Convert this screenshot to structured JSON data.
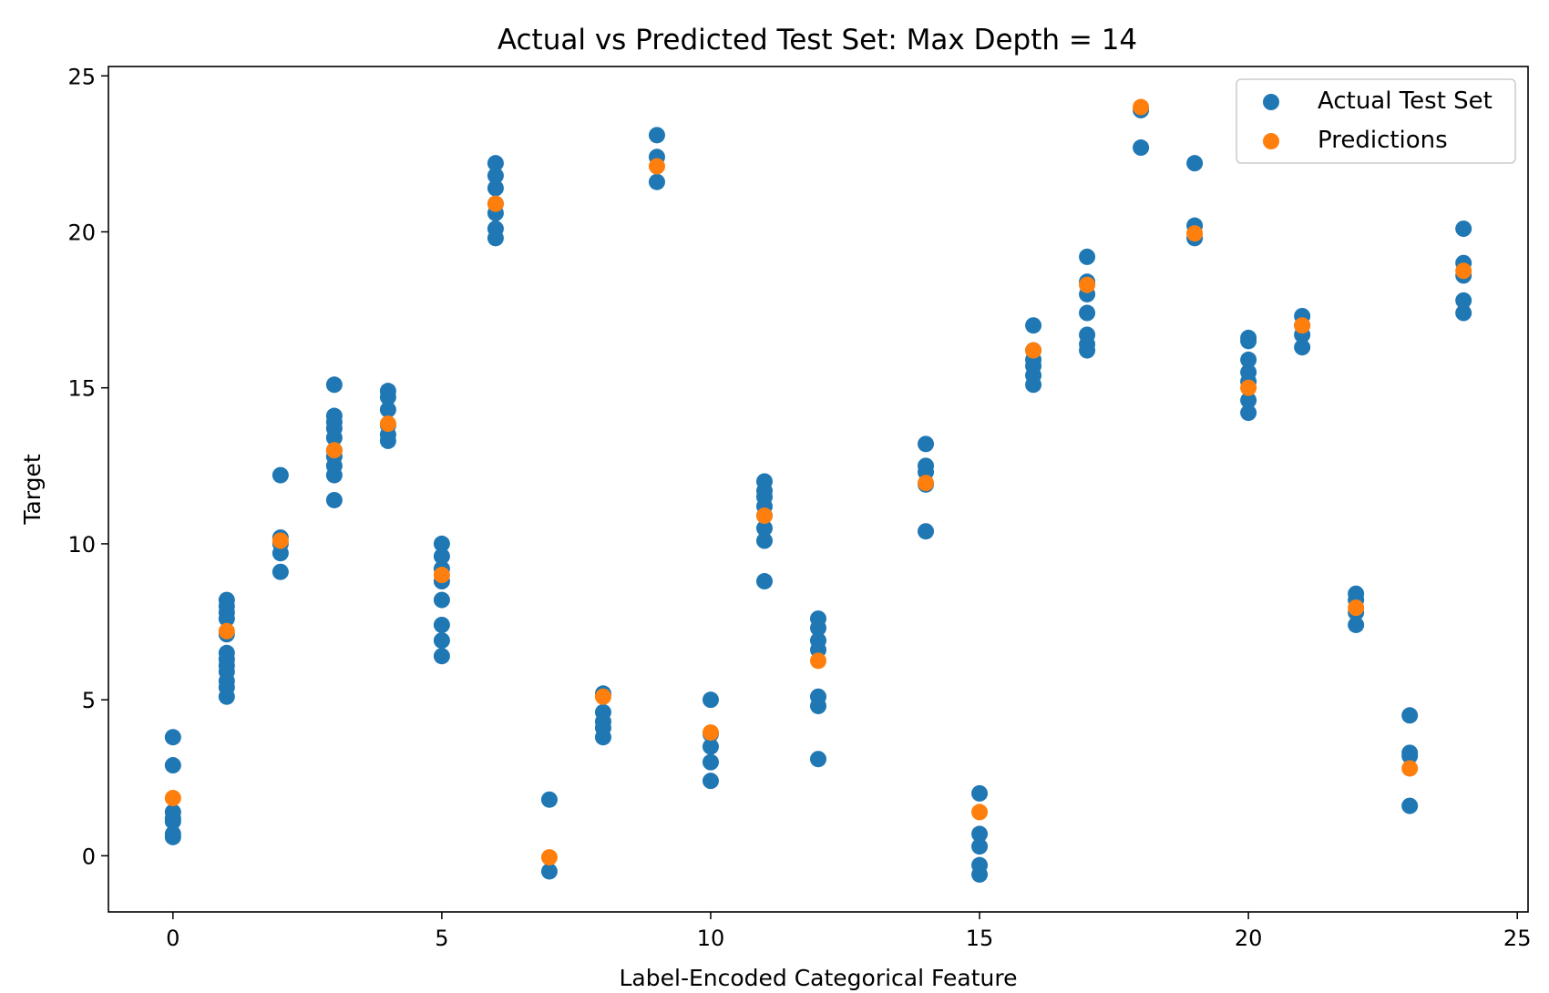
{
  "chart_data": {
    "type": "scatter",
    "title": "Actual vs Predicted Test Set: Max Depth = 14",
    "xlabel": "Label-Encoded Categorical Feature",
    "ylabel": "Target",
    "xlim": [
      -1.2,
      25.2
    ],
    "ylim": [
      -1.8,
      25.3
    ],
    "xticks": [
      0,
      5,
      10,
      15,
      20,
      25
    ],
    "yticks": [
      0,
      5,
      10,
      15,
      20,
      25
    ],
    "grid": false,
    "legend_position": "top-right",
    "series": [
      {
        "name": "Actual Test Set",
        "color": "#1f77b4",
        "points": [
          [
            0,
            3.8
          ],
          [
            0,
            2.9
          ],
          [
            0,
            1.4
          ],
          [
            0,
            1.2
          ],
          [
            0,
            1.1
          ],
          [
            0,
            0.7
          ],
          [
            0,
            0.6
          ],
          [
            1,
            8.2
          ],
          [
            1,
            8.0
          ],
          [
            1,
            7.8
          ],
          [
            1,
            7.6
          ],
          [
            1,
            7.1
          ],
          [
            1,
            6.5
          ],
          [
            1,
            6.3
          ],
          [
            1,
            6.1
          ],
          [
            1,
            5.9
          ],
          [
            1,
            5.6
          ],
          [
            1,
            5.4
          ],
          [
            1,
            5.1
          ],
          [
            2,
            12.2
          ],
          [
            2,
            10.2
          ],
          [
            2,
            10.0
          ],
          [
            2,
            9.7
          ],
          [
            2,
            9.1
          ],
          [
            3,
            15.1
          ],
          [
            3,
            14.1
          ],
          [
            3,
            13.9
          ],
          [
            3,
            13.7
          ],
          [
            3,
            13.4
          ],
          [
            3,
            13.0
          ],
          [
            3,
            12.8
          ],
          [
            3,
            12.5
          ],
          [
            3,
            12.2
          ],
          [
            3,
            11.4
          ],
          [
            4,
            14.9
          ],
          [
            4,
            14.7
          ],
          [
            4,
            14.3
          ],
          [
            4,
            13.8
          ],
          [
            4,
            13.5
          ],
          [
            4,
            13.3
          ],
          [
            5,
            10.0
          ],
          [
            5,
            9.6
          ],
          [
            5,
            9.2
          ],
          [
            5,
            8.8
          ],
          [
            5,
            8.2
          ],
          [
            5,
            7.4
          ],
          [
            5,
            6.9
          ],
          [
            5,
            6.4
          ],
          [
            6,
            22.2
          ],
          [
            6,
            21.8
          ],
          [
            6,
            21.4
          ],
          [
            6,
            20.9
          ],
          [
            6,
            20.6
          ],
          [
            6,
            20.1
          ],
          [
            6,
            19.8
          ],
          [
            7,
            1.8
          ],
          [
            7,
            -0.5
          ],
          [
            8,
            5.2
          ],
          [
            8,
            4.6
          ],
          [
            8,
            4.3
          ],
          [
            8,
            4.1
          ],
          [
            8,
            3.8
          ],
          [
            9,
            23.1
          ],
          [
            9,
            22.4
          ],
          [
            9,
            21.6
          ],
          [
            10,
            5.0
          ],
          [
            10,
            3.9
          ],
          [
            10,
            3.5
          ],
          [
            10,
            3.0
          ],
          [
            10,
            2.4
          ],
          [
            11,
            12.0
          ],
          [
            11,
            11.7
          ],
          [
            11,
            11.5
          ],
          [
            11,
            11.2
          ],
          [
            11,
            10.9
          ],
          [
            11,
            10.5
          ],
          [
            11,
            10.1
          ],
          [
            11,
            8.8
          ],
          [
            12,
            7.6
          ],
          [
            12,
            7.3
          ],
          [
            12,
            6.9
          ],
          [
            12,
            6.6
          ],
          [
            12,
            5.1
          ],
          [
            12,
            4.8
          ],
          [
            12,
            3.1
          ],
          [
            14,
            13.2
          ],
          [
            14,
            12.5
          ],
          [
            14,
            12.3
          ],
          [
            14,
            11.9
          ],
          [
            14,
            10.4
          ],
          [
            15,
            2.0
          ],
          [
            15,
            0.7
          ],
          [
            15,
            0.3
          ],
          [
            15,
            -0.3
          ],
          [
            15,
            -0.6
          ],
          [
            16,
            17.0
          ],
          [
            16,
            16.2
          ],
          [
            16,
            15.9
          ],
          [
            16,
            15.7
          ],
          [
            16,
            15.4
          ],
          [
            16,
            15.1
          ],
          [
            17,
            19.2
          ],
          [
            17,
            18.4
          ],
          [
            17,
            18.0
          ],
          [
            17,
            17.4
          ],
          [
            17,
            16.7
          ],
          [
            17,
            16.4
          ],
          [
            17,
            16.2
          ],
          [
            18,
            23.9
          ],
          [
            18,
            22.7
          ],
          [
            19,
            22.2
          ],
          [
            19,
            20.2
          ],
          [
            19,
            19.8
          ],
          [
            20,
            16.6
          ],
          [
            20,
            16.5
          ],
          [
            20,
            15.9
          ],
          [
            20,
            15.5
          ],
          [
            20,
            15.2
          ],
          [
            20,
            14.6
          ],
          [
            20,
            14.2
          ],
          [
            21,
            17.3
          ],
          [
            21,
            17.0
          ],
          [
            21,
            16.7
          ],
          [
            21,
            16.3
          ],
          [
            22,
            8.4
          ],
          [
            22,
            8.2
          ],
          [
            22,
            7.8
          ],
          [
            22,
            7.4
          ],
          [
            23,
            4.5
          ],
          [
            23,
            3.3
          ],
          [
            23,
            3.2
          ],
          [
            23,
            1.6
          ],
          [
            24,
            20.1
          ],
          [
            24,
            19.0
          ],
          [
            24,
            18.6
          ],
          [
            24,
            17.8
          ],
          [
            24,
            17.4
          ]
        ]
      },
      {
        "name": "Predictions",
        "color": "#ff7f0e",
        "points": [
          [
            0,
            1.85
          ],
          [
            1,
            7.2
          ],
          [
            2,
            10.1
          ],
          [
            3,
            13.0
          ],
          [
            4,
            13.85
          ],
          [
            5,
            9.0
          ],
          [
            6,
            20.9
          ],
          [
            7,
            -0.05
          ],
          [
            8,
            5.1
          ],
          [
            9,
            22.1
          ],
          [
            10,
            3.95
          ],
          [
            11,
            10.9
          ],
          [
            12,
            6.25
          ],
          [
            14,
            11.95
          ],
          [
            15,
            1.4
          ],
          [
            16,
            16.2
          ],
          [
            17,
            18.3
          ],
          [
            18,
            24.0
          ],
          [
            19,
            19.95
          ],
          [
            20,
            15.0
          ],
          [
            21,
            17.0
          ],
          [
            22,
            7.95
          ],
          [
            23,
            2.8
          ],
          [
            24,
            18.75
          ]
        ]
      }
    ]
  }
}
